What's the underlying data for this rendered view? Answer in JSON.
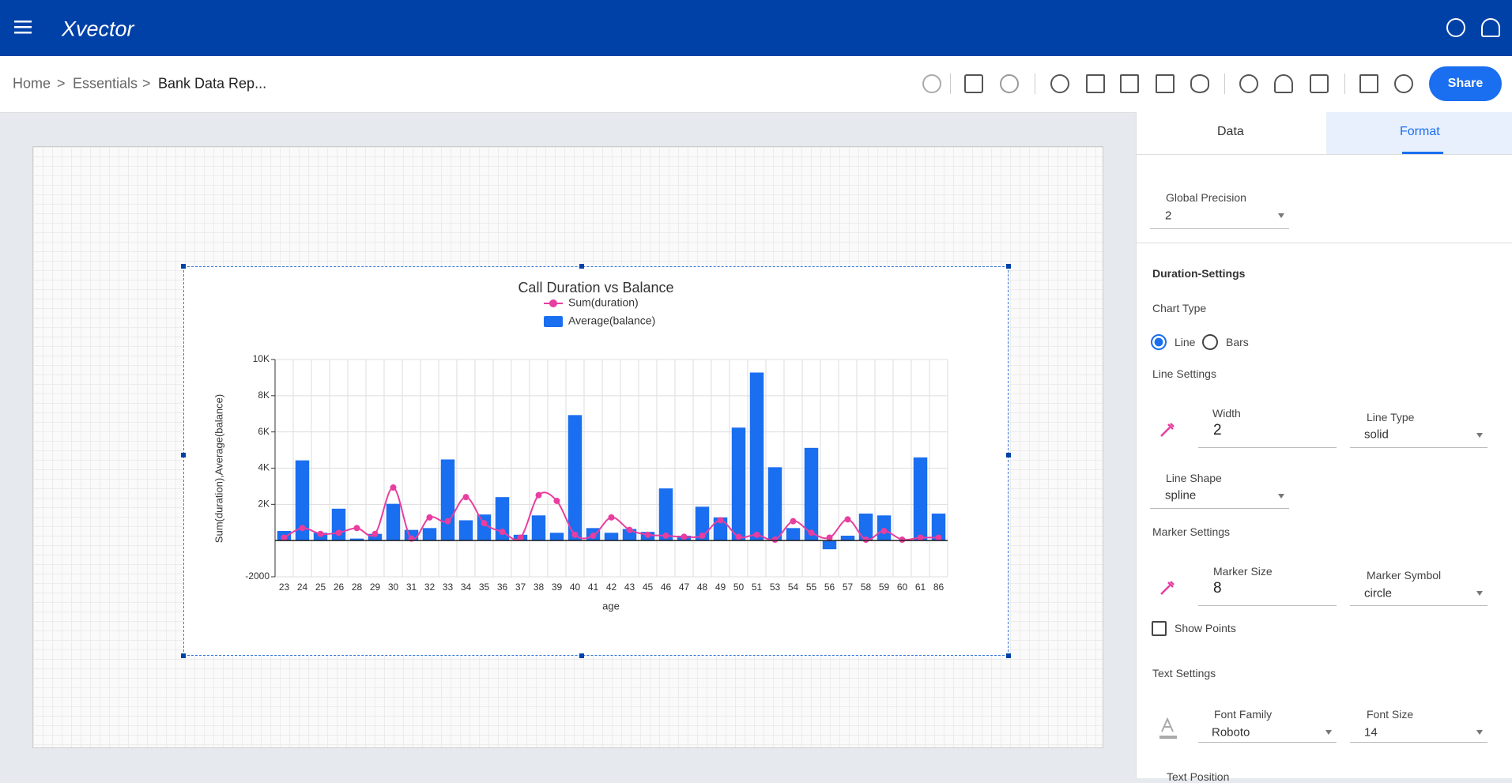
{
  "header": {
    "logo": "Xvector",
    "share": "Share"
  },
  "breadcrumb": {
    "items": [
      "Home",
      "Essentials",
      "Bank Data Rep..."
    ],
    "separator": ">"
  },
  "chart_data": {
    "type": "combo",
    "title": "Call Duration vs Balance",
    "x_label": "age",
    "y_label": "Sum(duration),Average(balance)",
    "categories": [
      "23",
      "24",
      "25",
      "26",
      "28",
      "29",
      "30",
      "31",
      "32",
      "33",
      "34",
      "35",
      "36",
      "37",
      "38",
      "39",
      "40",
      "41",
      "42",
      "43",
      "45",
      "46",
      "47",
      "48",
      "49",
      "50",
      "51",
      "53",
      "54",
      "55",
      "56",
      "57",
      "58",
      "59",
      "60",
      "61",
      "86"
    ],
    "series": [
      {
        "name": "Sum(duration)",
        "type": "line",
        "line_shape": "spline",
        "color": "#e83e9f",
        "values": [
          160,
          690,
          370,
          430,
          690,
          370,
          2930,
          110,
          1280,
          1070,
          2400,
          960,
          480,
          160,
          2510,
          2190,
          320,
          270,
          1280,
          590,
          320,
          270,
          210,
          270,
          1120,
          210,
          320,
          50,
          1070,
          430,
          160,
          1170,
          50,
          530,
          50,
          160,
          160
        ]
      },
      {
        "name": "Average(balance)",
        "type": "bar",
        "color": "#1a6ef0",
        "values": [
          530,
          4430,
          430,
          1760,
          110,
          370,
          2030,
          590,
          690,
          4480,
          1120,
          1440,
          2400,
          320,
          1390,
          430,
          6930,
          690,
          430,
          640,
          480,
          2880,
          270,
          1870,
          1280,
          6240,
          9280,
          4050,
          690,
          5120,
          -480,
          270,
          1490,
          1390,
          20,
          4590,
          1490
        ]
      }
    ],
    "ylim": [
      -2000,
      10000
    ],
    "yticks": [
      -2000,
      {
        "value": 2000,
        "label": "2K"
      },
      {
        "value": 4000,
        "label": "4K"
      },
      {
        "value": 6000,
        "label": "6K"
      },
      {
        "value": 8000,
        "label": "8K"
      },
      {
        "value": 10000,
        "label": "10K"
      }
    ],
    "grid": true
  },
  "panel": {
    "tabs": [
      "Data",
      "Format"
    ],
    "global_precision": {
      "label": "Global Precision",
      "value": "2"
    },
    "section": "Duration-Settings",
    "chart_type": {
      "label": "Chart Type",
      "options": [
        "Line",
        "Bars"
      ]
    },
    "line_settings": {
      "label": "Line Settings",
      "width": {
        "label": "Width",
        "value": "2"
      },
      "line_type": {
        "label": "Line Type",
        "value": "solid"
      },
      "line_shape": {
        "label": "Line Shape",
        "value": "spline"
      }
    },
    "marker_settings": {
      "label": "Marker Settings",
      "marker_size": {
        "label": "Marker Size",
        "value": "8"
      },
      "marker_symbol": {
        "label": "Marker Symbol",
        "value": "circle"
      },
      "show_points": "Show Points"
    },
    "text_settings": {
      "label": "Text Settings",
      "font_family": {
        "label": "Font Family",
        "value": "Roboto"
      },
      "font_size": {
        "label": "Font Size",
        "value": "14"
      },
      "text_position": "Text Position"
    }
  }
}
